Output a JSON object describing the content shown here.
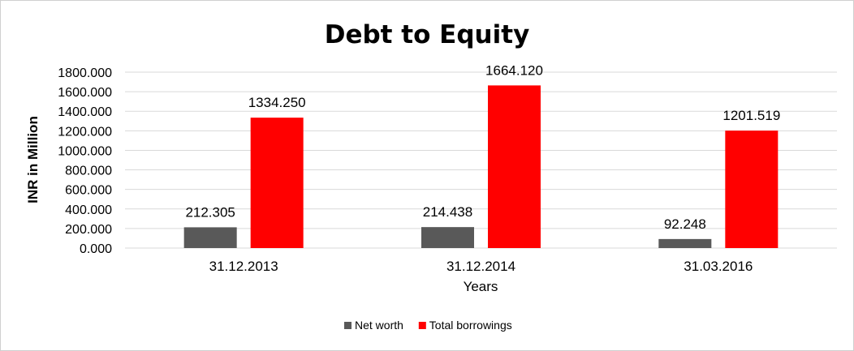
{
  "chart_data": {
    "type": "bar",
    "title": "Debt to Equity",
    "xlabel": "Years",
    "ylabel": "INR in Million",
    "categories": [
      "31.12.2013",
      "31.12.2014",
      "31.03.2016"
    ],
    "series": [
      {
        "name": "Net worth",
        "color": "#595959",
        "values": [
          212.305,
          214.438,
          92.248
        ],
        "labels": [
          "212.305",
          "214.438",
          "92.248"
        ]
      },
      {
        "name": "Total borrowings",
        "color": "#ff0000",
        "values": [
          1334.25,
          1664.12,
          1201.519
        ],
        "labels": [
          "1334.250",
          "1664.120",
          "1201.519"
        ]
      }
    ],
    "ylim": [
      0,
      1800
    ],
    "yticks": [
      0,
      200,
      400,
      600,
      800,
      1000,
      1200,
      1400,
      1600,
      1800
    ],
    "ytick_labels": [
      "0.000",
      "200.000",
      "400.000",
      "600.000",
      "800.000",
      "1000.000",
      "1200.000",
      "1400.000",
      "1600.000",
      "1800.000"
    ],
    "grid": true,
    "legend_position": "bottom"
  }
}
